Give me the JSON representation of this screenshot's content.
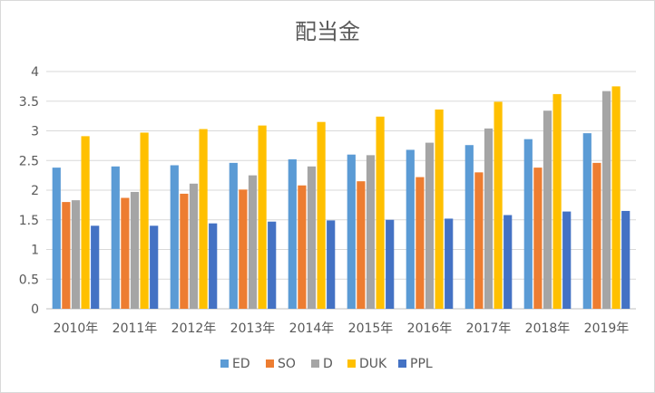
{
  "chart_data": {
    "type": "bar",
    "title": "配当金",
    "xlabel": "",
    "ylabel": "",
    "categories": [
      "2010年",
      "2011年",
      "2012年",
      "2013年",
      "2014年",
      "2015年",
      "2016年",
      "2017年",
      "2018年",
      "2019年"
    ],
    "ylim": [
      0,
      4
    ],
    "yticks": [
      "0",
      "0.5",
      "1",
      "1.5",
      "2",
      "2.5",
      "3",
      "3.5",
      "4"
    ],
    "grid": true,
    "legend_position": "bottom",
    "series": [
      {
        "name": "ED",
        "color": "#5b9bd5",
        "values": [
          2.38,
          2.4,
          2.42,
          2.46,
          2.52,
          2.6,
          2.68,
          2.76,
          2.86,
          2.96
        ]
      },
      {
        "name": "SO",
        "color": "#ed7d31",
        "values": [
          1.8,
          1.87,
          1.94,
          2.01,
          2.08,
          2.15,
          2.22,
          2.3,
          2.38,
          2.46
        ]
      },
      {
        "name": "D",
        "color": "#a5a5a5",
        "values": [
          1.83,
          1.97,
          2.11,
          2.25,
          2.4,
          2.59,
          2.8,
          3.04,
          3.34,
          3.67
        ]
      },
      {
        "name": "DUK",
        "color": "#ffc000",
        "values": [
          2.91,
          2.97,
          3.03,
          3.09,
          3.15,
          3.24,
          3.36,
          3.49,
          3.62,
          3.75
        ]
      },
      {
        "name": "PPL",
        "color": "#4472c4",
        "values": [
          1.4,
          1.4,
          1.44,
          1.47,
          1.49,
          1.5,
          1.52,
          1.58,
          1.64,
          1.65
        ]
      }
    ]
  }
}
